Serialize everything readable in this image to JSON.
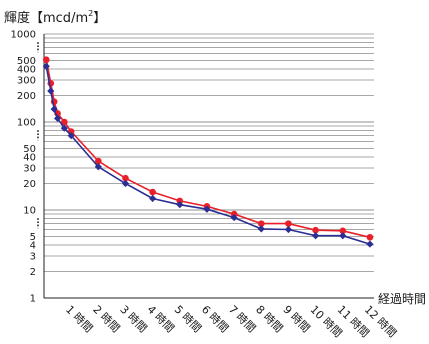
{
  "chart_data": {
    "type": "line",
    "ylabel_main": "輝度【mcd/m",
    "ylabel_sup": "2",
    "ylabel_close": "】",
    "xlabel": "経過時間",
    "y_scale": "log",
    "ylim": [
      1,
      1000
    ],
    "y_ticks": [
      {
        "v": 1000,
        "label": "1000"
      },
      {
        "v": 500,
        "label": "500"
      },
      {
        "v": 400,
        "label": "400"
      },
      {
        "v": 300,
        "label": "300"
      },
      {
        "v": 200,
        "label": "200"
      },
      {
        "v": 100,
        "label": "100"
      },
      {
        "v": 50,
        "label": "50"
      },
      {
        "v": 40,
        "label": "40"
      },
      {
        "v": 30,
        "label": "30"
      },
      {
        "v": 20,
        "label": "20"
      },
      {
        "v": 10,
        "label": "10"
      },
      {
        "v": 5,
        "label": "5"
      },
      {
        "v": 4,
        "label": "4"
      },
      {
        "v": 3,
        "label": "3"
      },
      {
        "v": 2,
        "label": "2"
      },
      {
        "v": 1,
        "label": "1"
      }
    ],
    "y_gaps": [
      [
        500,
        1000
      ],
      [
        50,
        100
      ],
      [
        5,
        10
      ]
    ],
    "xlim": [
      0,
      12.15
    ],
    "x_ticks": [
      {
        "v": 1,
        "label": "1 時間"
      },
      {
        "v": 2,
        "label": "2 時間"
      },
      {
        "v": 3,
        "label": "3 時間"
      },
      {
        "v": 4,
        "label": "4 時間"
      },
      {
        "v": 5,
        "label": "5 時間"
      },
      {
        "v": 6,
        "label": "6 時間"
      },
      {
        "v": 7,
        "label": "7 時間"
      },
      {
        "v": 8,
        "label": "8 時間"
      },
      {
        "v": 9,
        "label": "9 時間"
      },
      {
        "v": 10,
        "label": "10 時間"
      },
      {
        "v": 11,
        "label": "11 時間"
      },
      {
        "v": 12,
        "label": "12 時間"
      }
    ],
    "grid": "horizontal",
    "series": [
      {
        "color": "#e8202a",
        "marker": "circle",
        "points": [
          [
            0.083,
            510
          ],
          [
            0.25,
            275
          ],
          [
            0.375,
            170
          ],
          [
            0.5,
            125
          ],
          [
            0.75,
            100
          ],
          [
            1,
            78
          ],
          [
            2,
            36
          ],
          [
            3,
            23
          ],
          [
            4,
            16
          ],
          [
            5,
            12.7
          ],
          [
            6,
            11
          ],
          [
            7,
            9
          ],
          [
            8,
            7
          ],
          [
            9,
            7
          ],
          [
            10,
            5.9
          ],
          [
            11,
            5.8
          ],
          [
            12,
            4.9
          ]
        ]
      },
      {
        "color": "#2b2f93",
        "marker": "diamond",
        "points": [
          [
            0.083,
            430
          ],
          [
            0.25,
            225
          ],
          [
            0.375,
            140
          ],
          [
            0.5,
            110
          ],
          [
            0.75,
            85
          ],
          [
            1,
            70
          ],
          [
            2,
            31
          ],
          [
            3,
            20
          ],
          [
            4,
            13.5
          ],
          [
            5,
            11.5
          ],
          [
            6,
            10.2
          ],
          [
            7,
            8.2
          ],
          [
            8,
            6.1
          ],
          [
            9,
            6
          ],
          [
            10,
            5.1
          ],
          [
            11,
            5.1
          ],
          [
            12,
            4.1
          ]
        ]
      }
    ]
  }
}
